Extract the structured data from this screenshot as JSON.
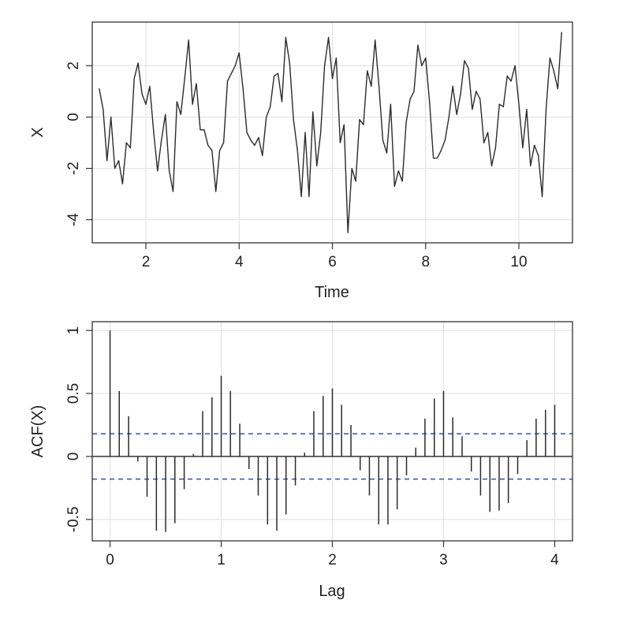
{
  "chart_data": [
    {
      "type": "line",
      "xlabel": "Time",
      "ylabel": "X",
      "xlim": [
        0.85,
        11.15
      ],
      "ylim": [
        -4.9,
        3.7
      ],
      "xticks": [
        2,
        4,
        6,
        8,
        10
      ],
      "yticks": [
        -4,
        -2,
        0,
        2
      ],
      "grid": true,
      "line_color": "#2b2b2b",
      "series": [
        {
          "x": [
            1.0,
            1.083,
            1.167,
            1.25,
            1.333,
            1.417,
            1.5,
            1.583,
            1.667,
            1.75,
            1.833,
            1.917,
            2.0,
            2.083,
            2.167,
            2.25,
            2.333,
            2.417,
            2.5,
            2.583,
            2.667,
            2.75,
            2.833,
            2.917,
            3.0,
            3.083,
            3.167,
            3.25,
            3.333,
            3.417,
            3.5,
            3.583,
            3.667,
            3.75,
            3.833,
            3.917,
            4.0,
            4.083,
            4.167,
            4.25,
            4.333,
            4.417,
            4.5,
            4.583,
            4.667,
            4.75,
            4.833,
            4.917,
            5.0,
            5.083,
            5.167,
            5.25,
            5.333,
            5.417,
            5.5,
            5.583,
            5.667,
            5.75,
            5.833,
            5.917,
            6.0,
            6.083,
            6.167,
            6.25,
            6.333,
            6.417,
            6.5,
            6.583,
            6.667,
            6.75,
            6.833,
            6.917,
            7.0,
            7.083,
            7.167,
            7.25,
            7.333,
            7.417,
            7.5,
            7.583,
            7.667,
            7.75,
            7.833,
            7.917,
            8.0,
            8.083,
            8.167,
            8.25,
            8.333,
            8.417,
            8.5,
            8.583,
            8.667,
            8.75,
            8.833,
            8.917,
            9.0,
            9.083,
            9.167,
            9.25,
            9.333,
            9.417,
            9.5,
            9.583,
            9.667,
            9.75,
            9.833,
            9.917,
            10.0,
            10.083,
            10.167,
            10.25,
            10.333,
            10.417,
            10.5,
            10.583,
            10.667,
            10.75,
            10.833,
            10.917
          ],
          "y": [
            1.1,
            0.3,
            -1.7,
            0.0,
            -2.0,
            -1.7,
            -2.6,
            -1.0,
            -1.2,
            1.5,
            2.1,
            0.9,
            0.5,
            1.2,
            -0.6,
            -2.1,
            -0.9,
            0.1,
            -2.1,
            -2.9,
            0.6,
            0.1,
            1.5,
            3.0,
            0.5,
            1.3,
            -0.5,
            -0.5,
            -1.1,
            -1.3,
            -2.9,
            -1.3,
            -1.0,
            1.4,
            1.7,
            2.0,
            2.5,
            1.1,
            -0.6,
            -0.9,
            -1.1,
            -0.8,
            -1.5,
            0.0,
            0.4,
            1.6,
            1.7,
            0.6,
            3.1,
            2.1,
            -0.1,
            -1.3,
            -3.1,
            -0.6,
            -3.1,
            0.2,
            -1.9,
            -0.6,
            2.0,
            3.1,
            1.5,
            2.3,
            -1.0,
            -0.3,
            -4.5,
            -2.0,
            -2.5,
            -0.1,
            -0.3,
            1.8,
            1.2,
            3.0,
            1.2,
            -0.9,
            -1.4,
            0.5,
            -2.7,
            -2.1,
            -2.5,
            -0.2,
            0.7,
            1.0,
            2.8,
            2.0,
            2.3,
            0.6,
            -1.6,
            -1.6,
            -1.3,
            -0.9,
            0.0,
            1.2,
            0.1,
            0.9,
            2.2,
            1.9,
            0.3,
            1.0,
            0.7,
            -1.0,
            -0.6,
            -1.9,
            -1.2,
            0.5,
            0.4,
            1.6,
            1.4,
            2.0,
            0.5,
            -1.2,
            0.3,
            -1.9,
            -1.1,
            -1.5,
            -3.1,
            0.3,
            2.3,
            1.8,
            1.1,
            3.3
          ]
        }
      ]
    },
    {
      "type": "bar",
      "xlabel": "Lag",
      "ylabel": "ACF(X)",
      "xlim": [
        -0.16,
        4.16
      ],
      "ylim": [
        -0.67,
        1.07
      ],
      "xticks": [
        0,
        1,
        2,
        3,
        4
      ],
      "yticks": [
        -0.5,
        0.0,
        0.5,
        1.0
      ],
      "grid": true,
      "bar_color": "#2b2b2b",
      "confidence_band": [
        0.18,
        -0.18
      ],
      "band_color": "#3b5fc4",
      "series": [
        {
          "lags": [
            0.0,
            0.083,
            0.167,
            0.25,
            0.333,
            0.417,
            0.5,
            0.583,
            0.667,
            0.75,
            0.833,
            0.917,
            1.0,
            1.083,
            1.167,
            1.25,
            1.333,
            1.417,
            1.5,
            1.583,
            1.667,
            1.75,
            1.833,
            1.917,
            2.0,
            2.083,
            2.167,
            2.25,
            2.333,
            2.417,
            2.5,
            2.583,
            2.667,
            2.75,
            2.833,
            2.917,
            3.0,
            3.083,
            3.167,
            3.25,
            3.333,
            3.417,
            3.5,
            3.583,
            3.667,
            3.75,
            3.833,
            3.917,
            4.0
          ],
          "values": [
            1.0,
            0.52,
            0.32,
            -0.04,
            -0.32,
            -0.59,
            -0.6,
            -0.53,
            -0.26,
            0.02,
            0.36,
            0.47,
            0.64,
            0.52,
            0.26,
            -0.1,
            -0.31,
            -0.54,
            -0.59,
            -0.46,
            -0.23,
            0.03,
            0.36,
            0.48,
            0.54,
            0.41,
            0.25,
            -0.11,
            -0.31,
            -0.54,
            -0.54,
            -0.42,
            -0.15,
            0.07,
            0.3,
            0.46,
            0.52,
            0.31,
            0.16,
            -0.12,
            -0.31,
            -0.44,
            -0.43,
            -0.37,
            -0.14,
            0.13,
            0.3,
            0.37,
            0.41
          ]
        }
      ]
    }
  ]
}
